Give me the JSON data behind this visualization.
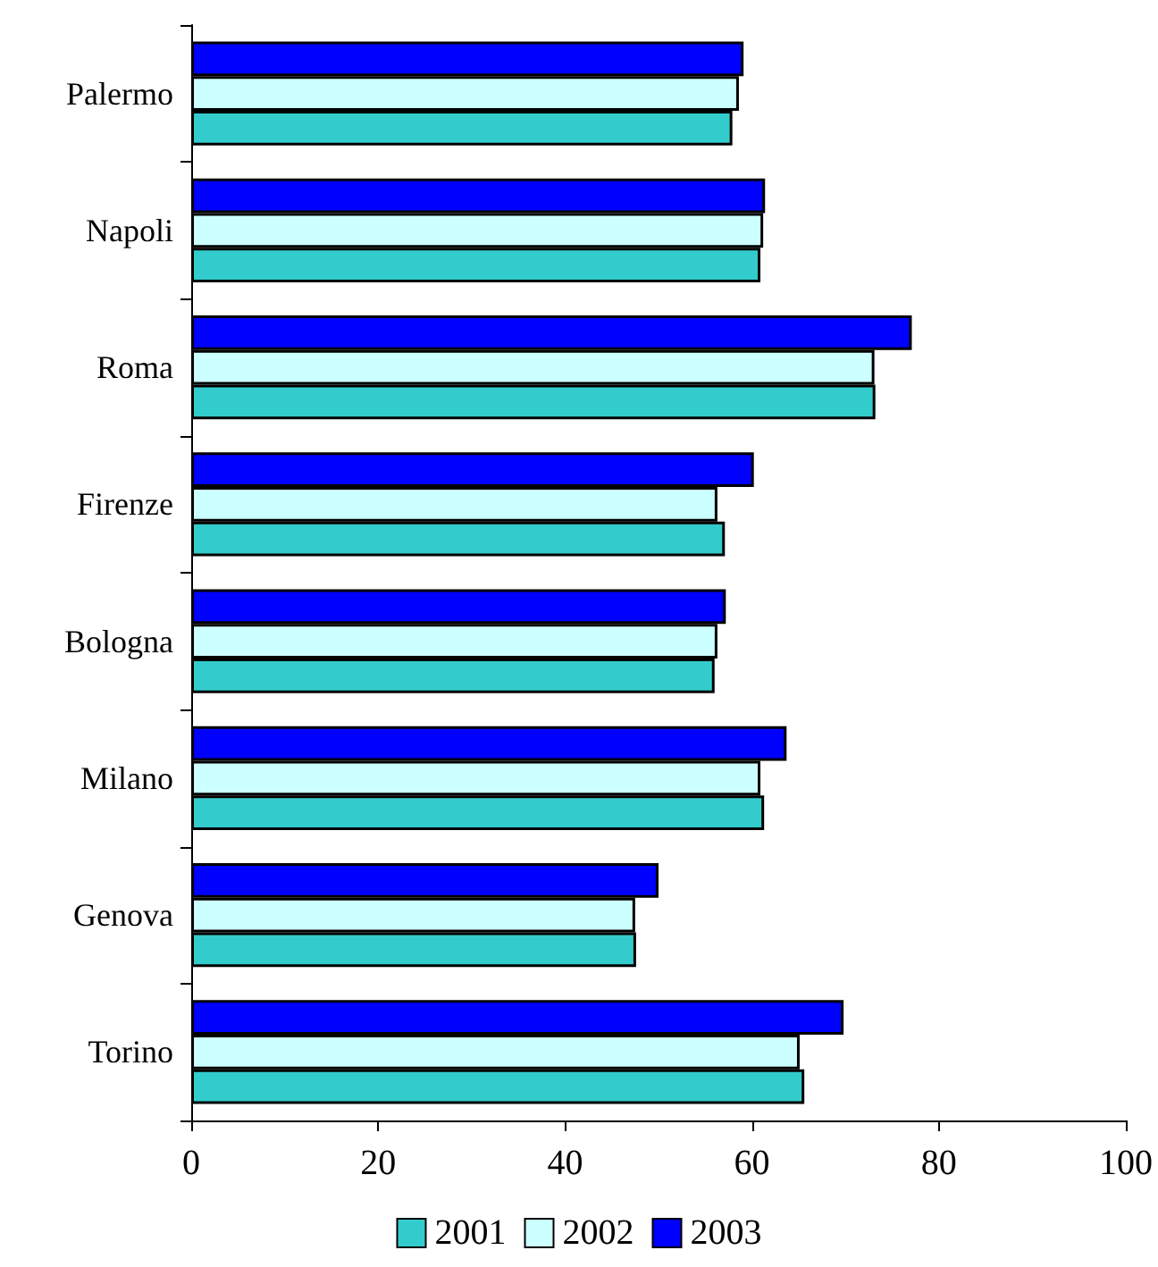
{
  "chart_data": {
    "type": "bar",
    "orientation": "horizontal",
    "categories": [
      "Palermo",
      "Napoli",
      "Roma",
      "Firenze",
      "Bologna",
      "Milano",
      "Genova",
      "Torino"
    ],
    "series": [
      {
        "name": "2001",
        "color": "#33cccc",
        "values": [
          57.9,
          60.9,
          73.2,
          57.1,
          56.0,
          61.3,
          47.6,
          65.6
        ]
      },
      {
        "name": "2002",
        "color": "#ccffff",
        "values": [
          58.6,
          61.2,
          73.1,
          56.3,
          56.3,
          60.9,
          47.5,
          65.1
        ]
      },
      {
        "name": "2003",
        "color": "#0000ff",
        "values": [
          59.1,
          61.4,
          77.1,
          60.2,
          57.2,
          63.7,
          50.0,
          69.8
        ]
      }
    ],
    "xlim": [
      0,
      100
    ],
    "xticks": [
      0,
      20,
      40,
      60,
      80,
      100
    ],
    "grid": false,
    "legend": "bottom"
  }
}
